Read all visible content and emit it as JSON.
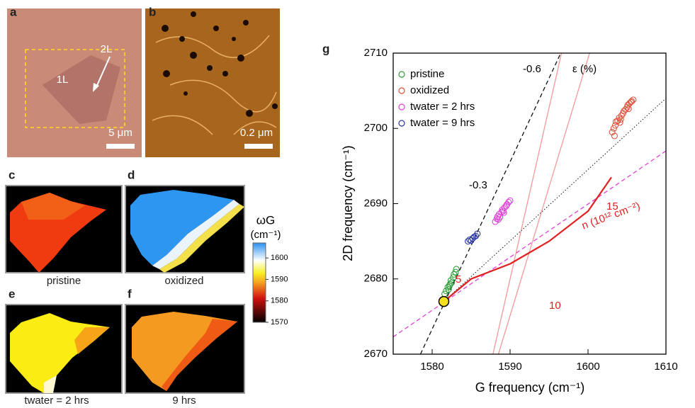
{
  "panels": {
    "a": {
      "label": "a",
      "layer_2L": "2L",
      "layer_1L": "1L",
      "scale_bar": "5 μm"
    },
    "b": {
      "label": "b",
      "scale_bar": "0.2 μm"
    },
    "c": {
      "label": "c",
      "caption": "pristine"
    },
    "d": {
      "label": "d",
      "caption": "oxidized"
    },
    "e": {
      "label": "e",
      "caption": "twater = 2 hrs"
    },
    "f": {
      "label": "f",
      "caption": "9 hrs"
    },
    "g": {
      "label": "g"
    }
  },
  "colorbar": {
    "title": "ωG",
    "unit": "(cm⁻¹)",
    "lim": [
      1570,
      1607
    ],
    "ticks": [
      1570,
      1580,
      1590,
      1600
    ]
  },
  "chart_data": {
    "type": "scatter",
    "xlabel": "G frequency (cm⁻¹)",
    "ylabel": "2D frequency (cm⁻¹)",
    "xlim": [
      1575,
      1610
    ],
    "ylim": [
      2670,
      2710
    ],
    "xticks": [
      1580,
      1590,
      1600,
      1610
    ],
    "yticks": [
      2670,
      2680,
      2690,
      2700,
      2710
    ],
    "legend": "top-left",
    "series": [
      {
        "name": "pristine",
        "color": "#2e9e3a",
        "x": [
          1581.6,
          1581.8,
          1582.0,
          1582.1,
          1582.3,
          1582.4,
          1582.5,
          1582.7,
          1582.8,
          1583.0,
          1583.1,
          1582.2
        ],
        "y": [
          2678.0,
          2678.4,
          2678.9,
          2678.6,
          2679.3,
          2679.8,
          2679.5,
          2680.2,
          2680.6,
          2680.9,
          2681.3,
          2679.1
        ]
      },
      {
        "name": "oxidized",
        "color": "#e0503a",
        "x": [
          1603.1,
          1603.3,
          1603.5,
          1603.6,
          1603.8,
          1604.0,
          1604.1,
          1604.3,
          1604.5,
          1604.6,
          1604.8,
          1605.0,
          1605.1,
          1605.3,
          1605.5,
          1605.6,
          1605.8,
          1603.4,
          1604.2,
          1605.2
        ],
        "y": [
          2699.5,
          2700.0,
          2700.4,
          2700.9,
          2701.0,
          2701.4,
          2700.8,
          2701.7,
          2702.0,
          2702.3,
          2702.5,
          2702.8,
          2703.1,
          2703.3,
          2703.5,
          2703.6,
          2703.8,
          2699.0,
          2701.2,
          2702.6
        ]
      },
      {
        "name": "twater = 2 hrs",
        "color": "#e040d8",
        "x": [
          1588.1,
          1588.3,
          1588.4,
          1588.6,
          1588.7,
          1588.9,
          1589.0,
          1589.2,
          1589.3,
          1589.5,
          1589.6,
          1589.8,
          1590.0,
          1588.5,
          1589.1
        ],
        "y": [
          2687.6,
          2688.0,
          2688.3,
          2688.6,
          2688.2,
          2688.9,
          2689.2,
          2688.8,
          2689.5,
          2689.7,
          2689.9,
          2690.2,
          2690.4,
          2687.9,
          2689.0
        ]
      },
      {
        "name": "twater = 9 hrs",
        "color": "#2a36a8",
        "x": [
          1584.6,
          1584.8,
          1585.0,
          1585.2,
          1585.4,
          1585.6,
          1585.8
        ],
        "y": [
          2685.0,
          2685.2,
          2685.1,
          2685.4,
          2685.6,
          2685.7,
          2686.0
        ]
      }
    ],
    "origin_point": {
      "x": 1581.5,
      "y": 2677,
      "color": "#f5e11c"
    },
    "lines": [
      {
        "color": "#111111",
        "dash": "dashed",
        "x": [
          1578.5,
          1596.5
        ],
        "y": [
          2670,
          2710
        ]
      },
      {
        "color": "#111111",
        "dash": "dotted",
        "x": [
          1581.5,
          1610
        ],
        "y": [
          2677,
          2704
        ]
      },
      {
        "color": "#e040d8",
        "dash": "dashed",
        "x": [
          1575,
          1610
        ],
        "y": [
          2672.3,
          2697
        ]
      },
      {
        "color": "#f08080",
        "dash": "solid",
        "x": [
          1587.8,
          1596.6
        ],
        "y": [
          2670,
          2710
        ]
      },
      {
        "color": "#f08080",
        "dash": "solid",
        "x": [
          1588.5,
          1600.2
        ],
        "y": [
          2670,
          2710
        ]
      },
      {
        "color": "#e02020",
        "dash": "thick",
        "x": [
          1581.5,
          1585,
          1590,
          1595,
          1600,
          1603
        ],
        "y": [
          2677,
          2680,
          2682,
          2685,
          2689,
          2693.5
        ]
      }
    ],
    "annotations": {
      "strain_a": "-0.6",
      "strain_b": "-0.3",
      "strain_unit": "ε (%)",
      "n_5": "5",
      "n_10": "10",
      "n_15": "15",
      "n_unit": "n (10¹² cm⁻²)"
    }
  }
}
